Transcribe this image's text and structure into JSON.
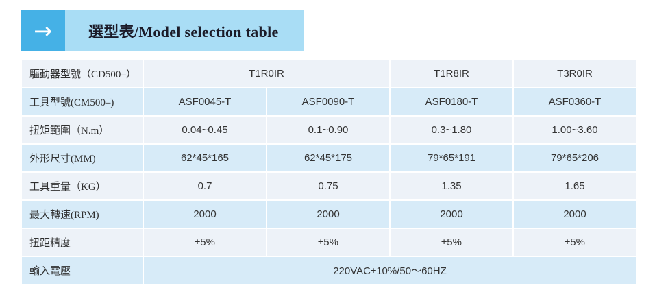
{
  "header": {
    "arrow_icon": "→",
    "title": "選型表/Model selection table"
  },
  "colors": {
    "accent_blue": "#45b1e6",
    "title_bar_blue": "#a9ddf5",
    "row_odd_bg": "#edf2f8",
    "row_even_bg": "#d7ebf8",
    "text_dark": "#333333"
  },
  "table": {
    "rows": [
      {
        "label": "驅動器型號（CD500–）",
        "cells": [
          "T1R0IR",
          "T1R8IR",
          "T3R0IR"
        ]
      },
      {
        "label": "工具型號(CM500–)",
        "cells": [
          "ASF0045-T",
          "ASF0090-T",
          "ASF0180-T",
          "ASF0360-T"
        ]
      },
      {
        "label": "扭矩範圍（N.m）",
        "cells": [
          "0.04~0.45",
          "0.1~0.90",
          "0.3~1.80",
          "1.00~3.60"
        ]
      },
      {
        "label": "外形尺寸(MM)",
        "cells": [
          "62*45*165",
          "62*45*175",
          "79*65*191",
          "79*65*206"
        ]
      },
      {
        "label": "工具重量（KG）",
        "cells": [
          "0.7",
          "0.75",
          "1.35",
          "1.65"
        ]
      },
      {
        "label": "最大轉速(RPM)",
        "cells": [
          "2000",
          "2000",
          "2000",
          "2000"
        ]
      },
      {
        "label": "扭距精度",
        "cells": [
          "±5%",
          "±5%",
          "±5%",
          "±5%"
        ]
      },
      {
        "label": "輸入電壓",
        "cells": [
          "220VAC±10%/50～60HZ"
        ]
      }
    ]
  }
}
